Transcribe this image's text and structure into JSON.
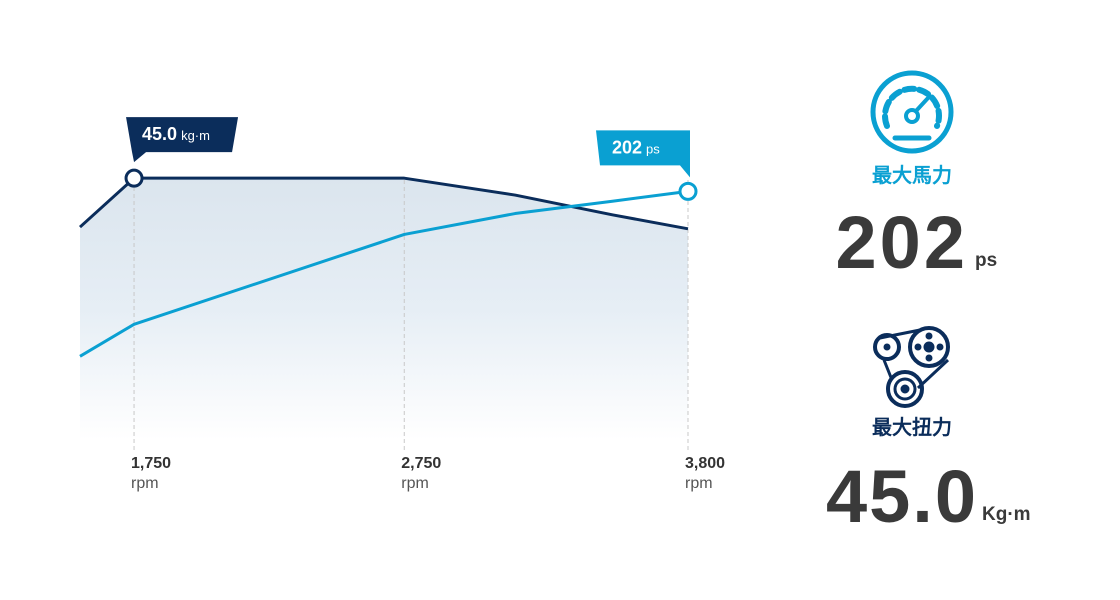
{
  "chart_data": {
    "type": "line",
    "xlabel": "rpm",
    "x": [
      1550,
      1750,
      2750,
      3160,
      3520,
      3800
    ],
    "xlim": [
      1550,
      3800
    ],
    "xticks": [
      {
        "value": 1750,
        "label": "1,750"
      },
      {
        "value": 2750,
        "label": "2,750"
      },
      {
        "value": 3800,
        "label": "3,800"
      }
    ],
    "ylim": [
      0,
      55
    ],
    "y2lim": [
      0,
      260
    ],
    "series": [
      {
        "name": "torque",
        "color": "#0b2d5b",
        "values": [
          36.6,
          45,
          45,
          42.1,
          38.7,
          36.3
        ],
        "value_labels": [
          null,
          "45.0",
          null,
          null,
          null,
          null
        ],
        "unit": "kg·m"
      },
      {
        "name": "power",
        "color": "#0aa0d2",
        "axis": "y2",
        "values": [
          68,
          94,
          167,
          184,
          194,
          202
        ],
        "value_labels": [
          null,
          null,
          null,
          null,
          null,
          "202"
        ],
        "unit": "ps"
      }
    ]
  },
  "specs": {
    "power": {
      "label": "最大馬力",
      "value": "202",
      "unit": "ps"
    },
    "torque": {
      "label": "最大扭力",
      "value": "45.0",
      "unit": "Kg·m"
    }
  }
}
